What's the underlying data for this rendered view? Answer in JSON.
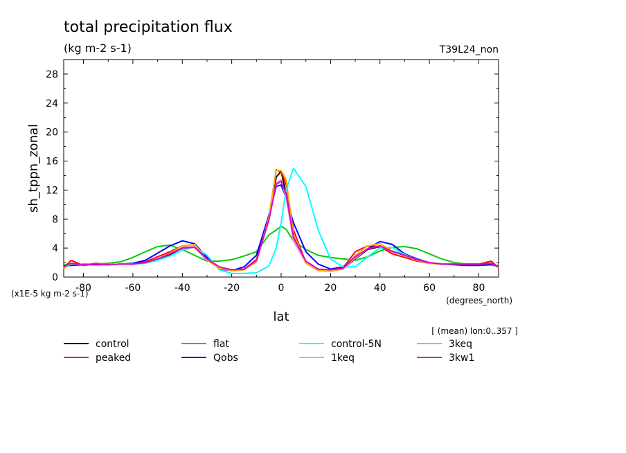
{
  "chart_data": {
    "type": "line",
    "title": "total precipitation flux",
    "subtitle": "(kg m-2 s-1)",
    "run_label": "T39L24_non",
    "ylabel": "sh_tppn_zonal",
    "xlabel": "lat",
    "x_units": "(degrees_north)",
    "y_units_note": "(x1E-5 kg m-2 s-1)",
    "averaging_note": "[ (mean) lon:0..357 ]",
    "xlim": [
      -88,
      88
    ],
    "ylim": [
      0,
      30
    ],
    "x_ticks": [
      -80,
      -60,
      -40,
      -20,
      0,
      20,
      40,
      60,
      80
    ],
    "y_ticks": [
      0,
      4,
      8,
      12,
      16,
      20,
      24,
      28
    ],
    "grid": false,
    "legend_position": "bottom",
    "x": [
      -88,
      -85,
      -80,
      -75,
      -70,
      -65,
      -60,
      -55,
      -50,
      -45,
      -40,
      -35,
      -30,
      -25,
      -20,
      -15,
      -10,
      -5,
      -2,
      0,
      2,
      5,
      10,
      15,
      20,
      25,
      30,
      35,
      40,
      45,
      50,
      55,
      60,
      65,
      70,
      75,
      80,
      85,
      88
    ],
    "series": [
      {
        "name": "control",
        "color": "#000000",
        "values": [
          1.2,
          1.9,
          1.7,
          1.8,
          1.7,
          1.8,
          1.8,
          2.0,
          2.4,
          3.1,
          4.0,
          4.2,
          2.3,
          1.3,
          0.9,
          1.0,
          2.2,
          8.0,
          13.8,
          14.6,
          11.5,
          5.0,
          2.0,
          1.0,
          0.9,
          1.1,
          2.5,
          3.8,
          4.2,
          3.6,
          3.0,
          2.4,
          2.0,
          1.8,
          1.8,
          1.8,
          1.8,
          1.9,
          1.3
        ]
      },
      {
        "name": "peaked",
        "color": "#ff0000",
        "values": [
          1.3,
          2.3,
          1.6,
          1.9,
          1.7,
          1.8,
          1.8,
          2.1,
          2.8,
          3.5,
          4.3,
          4.1,
          2.4,
          1.3,
          1.0,
          1.1,
          2.4,
          8.2,
          14.8,
          14.5,
          12.8,
          6.5,
          2.0,
          1.0,
          0.9,
          1.2,
          3.5,
          4.3,
          4.2,
          3.2,
          2.7,
          2.2,
          1.9,
          1.8,
          1.8,
          1.8,
          1.8,
          2.2,
          1.3
        ]
      },
      {
        "name": "flat",
        "color": "#00cc00",
        "values": [
          1.7,
          1.7,
          1.8,
          1.8,
          1.9,
          2.1,
          2.7,
          3.5,
          4.2,
          4.4,
          3.8,
          3.0,
          2.2,
          2.2,
          2.4,
          2.9,
          3.5,
          5.8,
          6.5,
          7.0,
          6.6,
          5.0,
          3.8,
          3.0,
          2.7,
          2.5,
          2.3,
          2.8,
          3.6,
          4.1,
          4.2,
          3.9,
          3.2,
          2.5,
          2.0,
          1.8,
          1.7,
          1.7,
          1.6
        ]
      },
      {
        "name": "Qobs",
        "color": "#0000ff",
        "values": [
          1.5,
          1.6,
          1.7,
          1.7,
          1.7,
          1.8,
          1.9,
          2.3,
          3.3,
          4.3,
          5.0,
          4.6,
          2.7,
          1.1,
          0.9,
          1.4,
          3.0,
          8.5,
          12.5,
          12.7,
          11.0,
          7.5,
          3.5,
          1.8,
          1.1,
          1.4,
          2.6,
          3.9,
          4.9,
          4.5,
          3.2,
          2.5,
          2.0,
          1.8,
          1.7,
          1.6,
          1.6,
          1.7,
          1.4
        ]
      },
      {
        "name": "control-5N",
        "color": "#00ffff",
        "values": [
          1.2,
          1.8,
          1.7,
          1.8,
          1.7,
          1.8,
          1.8,
          1.9,
          2.3,
          2.9,
          3.7,
          4.2,
          3.0,
          1.0,
          0.5,
          0.5,
          0.6,
          1.5,
          4.0,
          7.5,
          12.0,
          15.0,
          12.5,
          6.5,
          2.5,
          1.4,
          1.4,
          2.8,
          4.0,
          4.1,
          3.1,
          2.4,
          2.0,
          1.8,
          1.8,
          1.8,
          1.8,
          1.9,
          1.3
        ]
      },
      {
        "name": "1keq",
        "color": "#ee99dd",
        "values": [
          1.2,
          1.9,
          1.7,
          1.8,
          1.7,
          1.8,
          1.8,
          2.0,
          2.5,
          3.2,
          4.1,
          4.3,
          2.3,
          1.3,
          0.9,
          1.0,
          2.2,
          8.0,
          13.0,
          13.4,
          11.0,
          5.0,
          2.0,
          1.0,
          0.9,
          1.1,
          2.6,
          3.9,
          4.3,
          3.5,
          3.0,
          2.4,
          2.0,
          1.8,
          1.8,
          1.8,
          1.8,
          1.9,
          1.3
        ]
      },
      {
        "name": "3keq",
        "color": "#ffaa00",
        "values": [
          1.2,
          1.9,
          1.7,
          1.8,
          1.7,
          1.8,
          1.8,
          2.0,
          2.5,
          3.3,
          4.3,
          4.5,
          2.4,
          1.2,
          0.9,
          1.0,
          2.1,
          8.2,
          14.7,
          14.7,
          13.5,
          6.0,
          1.9,
          0.9,
          0.8,
          1.1,
          3.0,
          4.3,
          4.6,
          3.6,
          2.9,
          2.3,
          1.9,
          1.8,
          1.8,
          1.8,
          1.8,
          1.9,
          1.3
        ]
      },
      {
        "name": "3kw1",
        "color": "#dd00cc",
        "values": [
          1.4,
          1.9,
          1.7,
          1.8,
          1.7,
          1.8,
          1.8,
          2.0,
          2.5,
          3.2,
          4.0,
          4.1,
          2.5,
          1.4,
          1.0,
          1.1,
          2.3,
          7.8,
          12.8,
          13.2,
          11.5,
          5.5,
          2.2,
          1.1,
          1.0,
          1.2,
          2.8,
          3.9,
          4.3,
          3.5,
          3.0,
          2.4,
          2.0,
          1.8,
          1.8,
          1.8,
          1.8,
          1.9,
          1.4
        ]
      }
    ]
  }
}
